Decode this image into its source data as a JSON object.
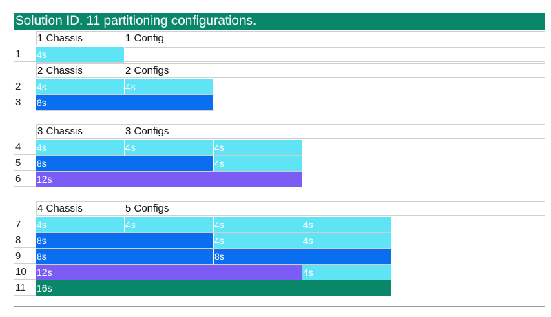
{
  "title": "Solution ID. 11 partitioning configurations.",
  "groups": [
    {
      "chassis": "1 Chassis",
      "configs": "1 Config"
    },
    {
      "chassis": "2 Chassis",
      "configs": "2 Configs"
    },
    {
      "chassis": "3 Chassis",
      "configs": "3 Configs"
    },
    {
      "chassis": "4 Chassis",
      "configs": "5 Configs"
    }
  ],
  "rows": [
    {
      "id": "1",
      "cells": [
        {
          "label": "4s",
          "units": 1
        }
      ]
    },
    {
      "id": "2",
      "cells": [
        {
          "label": "4s",
          "units": 1
        },
        {
          "label": "4s",
          "units": 1
        }
      ]
    },
    {
      "id": "3",
      "cells": [
        {
          "label": "8s",
          "units": 2
        }
      ]
    },
    {
      "id": "4",
      "cells": [
        {
          "label": "4s",
          "units": 1
        },
        {
          "label": "4s",
          "units": 1
        },
        {
          "label": "4s",
          "units": 1
        }
      ]
    },
    {
      "id": "5",
      "cells": [
        {
          "label": "8s",
          "units": 2
        },
        {
          "label": "4s",
          "units": 1
        }
      ]
    },
    {
      "id": "6",
      "cells": [
        {
          "label": "12s",
          "units": 3
        }
      ]
    },
    {
      "id": "7",
      "cells": [
        {
          "label": "4s",
          "units": 1
        },
        {
          "label": "4s",
          "units": 1
        },
        {
          "label": "4s",
          "units": 1
        },
        {
          "label": "4s",
          "units": 1
        }
      ]
    },
    {
      "id": "8",
      "cells": [
        {
          "label": "8s",
          "units": 2
        },
        {
          "label": "4s",
          "units": 1
        },
        {
          "label": "4s",
          "units": 1
        }
      ]
    },
    {
      "id": "9",
      "cells": [
        {
          "label": "8s",
          "units": 2
        },
        {
          "label": "8s",
          "units": 2
        }
      ]
    },
    {
      "id": "10",
      "cells": [
        {
          "label": "12s",
          "units": 3
        },
        {
          "label": "4s",
          "units": 1
        }
      ]
    },
    {
      "id": "11",
      "cells": [
        {
          "label": "16s",
          "units": 4
        }
      ]
    }
  ],
  "colors": {
    "4s": "#5ee4f5",
    "8s": "#0a6ef0",
    "12s": "#7b5cf5",
    "16s": "#0a8769",
    "title_bg": "#0a8769"
  }
}
